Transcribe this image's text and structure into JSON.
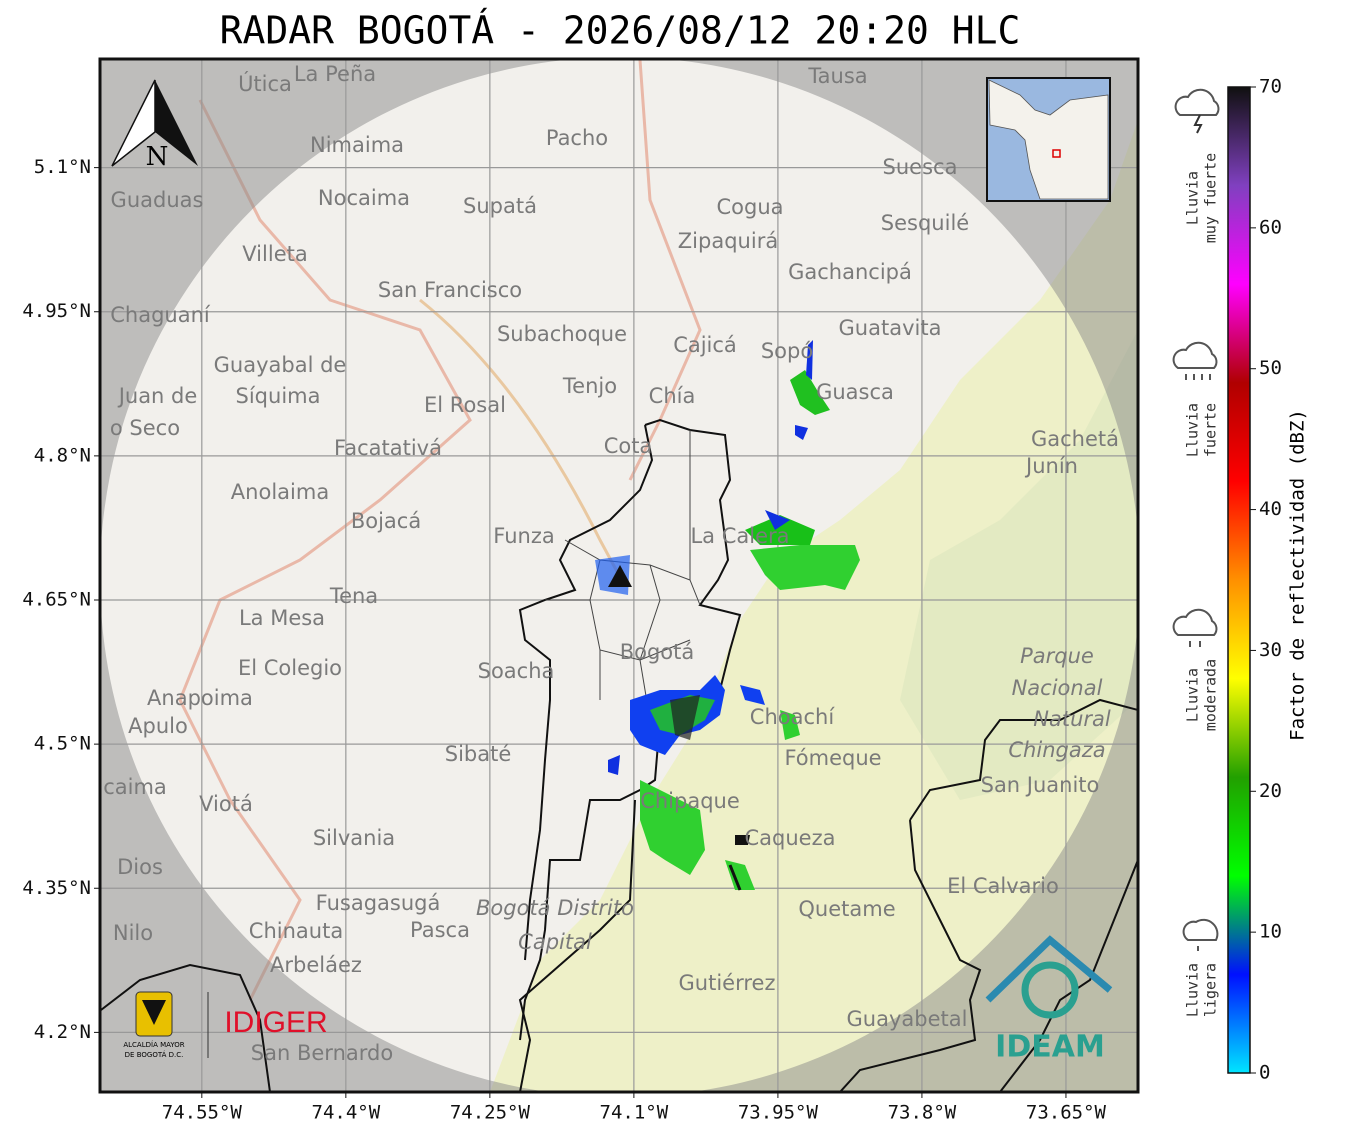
{
  "map": {
    "title": "RADAR BOGOTÁ - 2026/08/12 20:20 HLC",
    "north": "N",
    "xlim": [
      -74.655,
      -73.576
    ],
    "ylim": [
      4.139,
      5.212
    ],
    "xticks": [
      {
        "value": -74.55,
        "label": "74.55°W"
      },
      {
        "value": -74.4,
        "label": "74.4°W"
      },
      {
        "value": -74.25,
        "label": "74.25°W"
      },
      {
        "value": -74.1,
        "label": "74.1°W"
      },
      {
        "value": -73.95,
        "label": "73.95°W"
      },
      {
        "value": -73.8,
        "label": "73.8°W"
      },
      {
        "value": -73.65,
        "label": "73.65°W"
      }
    ],
    "yticks": [
      {
        "value": 5.1,
        "label": "5.1°N"
      },
      {
        "value": 4.95,
        "label": "4.95°N"
      },
      {
        "value": 4.8,
        "label": "4.8°N"
      },
      {
        "value": 4.65,
        "label": "4.65°N"
      },
      {
        "value": 4.5,
        "label": "4.5°N"
      },
      {
        "value": 4.35,
        "label": "4.35°N"
      },
      {
        "value": 4.2,
        "label": "4.2°N"
      }
    ],
    "grid": true,
    "places": [
      "Útica",
      "La Peña",
      "Tausa",
      "Pacho",
      "Nimaima",
      "Suesca",
      "Guaduas",
      "Nocaima",
      "Supatá",
      "Cogua",
      "Sesquilé",
      "Zipaquirá",
      "Villeta",
      "Gachancipá",
      "San Francisco",
      "Chaguaní",
      "Guatavita",
      "Subachoque",
      "Cajicá",
      "Sopó",
      "Guayabal de",
      "Síquima",
      "Tenjo",
      "Chía",
      "Guasca",
      "Juan de",
      "El Rosal",
      "o Seco",
      "Gachetá",
      "Facatativá",
      "Cota",
      "Junín",
      "Anolaima",
      "Bojacá",
      "Funza",
      "La Calera",
      "Tena",
      "La Mesa",
      "Bogotá",
      "Parque",
      "Soacha",
      "El Colegio",
      "Nacional",
      "Anapoima",
      "Apulo",
      "Natural",
      "Choachí",
      "Chingaza",
      "Sibaté",
      "Fómeque",
      "San Juanito",
      "caima",
      "Viotá",
      "Chipaque",
      "Silvania",
      "Caqueza",
      "Dios",
      "El Calvario",
      "Fusagasugá",
      "Bogotá Distrito",
      "Quetame",
      "Nilo",
      "Chinauta",
      "Pasca",
      "Capital",
      "Arbeláez",
      "Gutiérrez",
      "Guayabetal",
      "San Bernardo"
    ],
    "logos": {
      "alcaldia": [
        "ALCALDÍA MAYOR",
        "DE BOGOTÁ D.C."
      ],
      "idiger": "IDIGER",
      "ideam": "IDEAM"
    }
  },
  "colorbar": {
    "label": "Factor de reflectividad (dBZ)",
    "lim": [
      0,
      70
    ],
    "ticks": [
      0,
      10,
      20,
      30,
      40,
      50,
      60,
      70
    ],
    "colors": [
      "#00e5ff",
      "#0010ff",
      "#00ff00",
      "#22a000",
      "#ffff00",
      "#ff9000",
      "#ff0000",
      "#b00000",
      "#ff00ff",
      "#8040c0",
      "#101010"
    ]
  },
  "legend": [
    {
      "lines": [
        "Lluvia",
        "muy fuerte"
      ]
    },
    {
      "lines": [
        "Lluvia",
        "fuerte"
      ]
    },
    {
      "lines": [
        "Lluvia",
        "moderada"
      ]
    },
    {
      "lines": [
        "Lluvia",
        "ligera"
      ]
    }
  ]
}
